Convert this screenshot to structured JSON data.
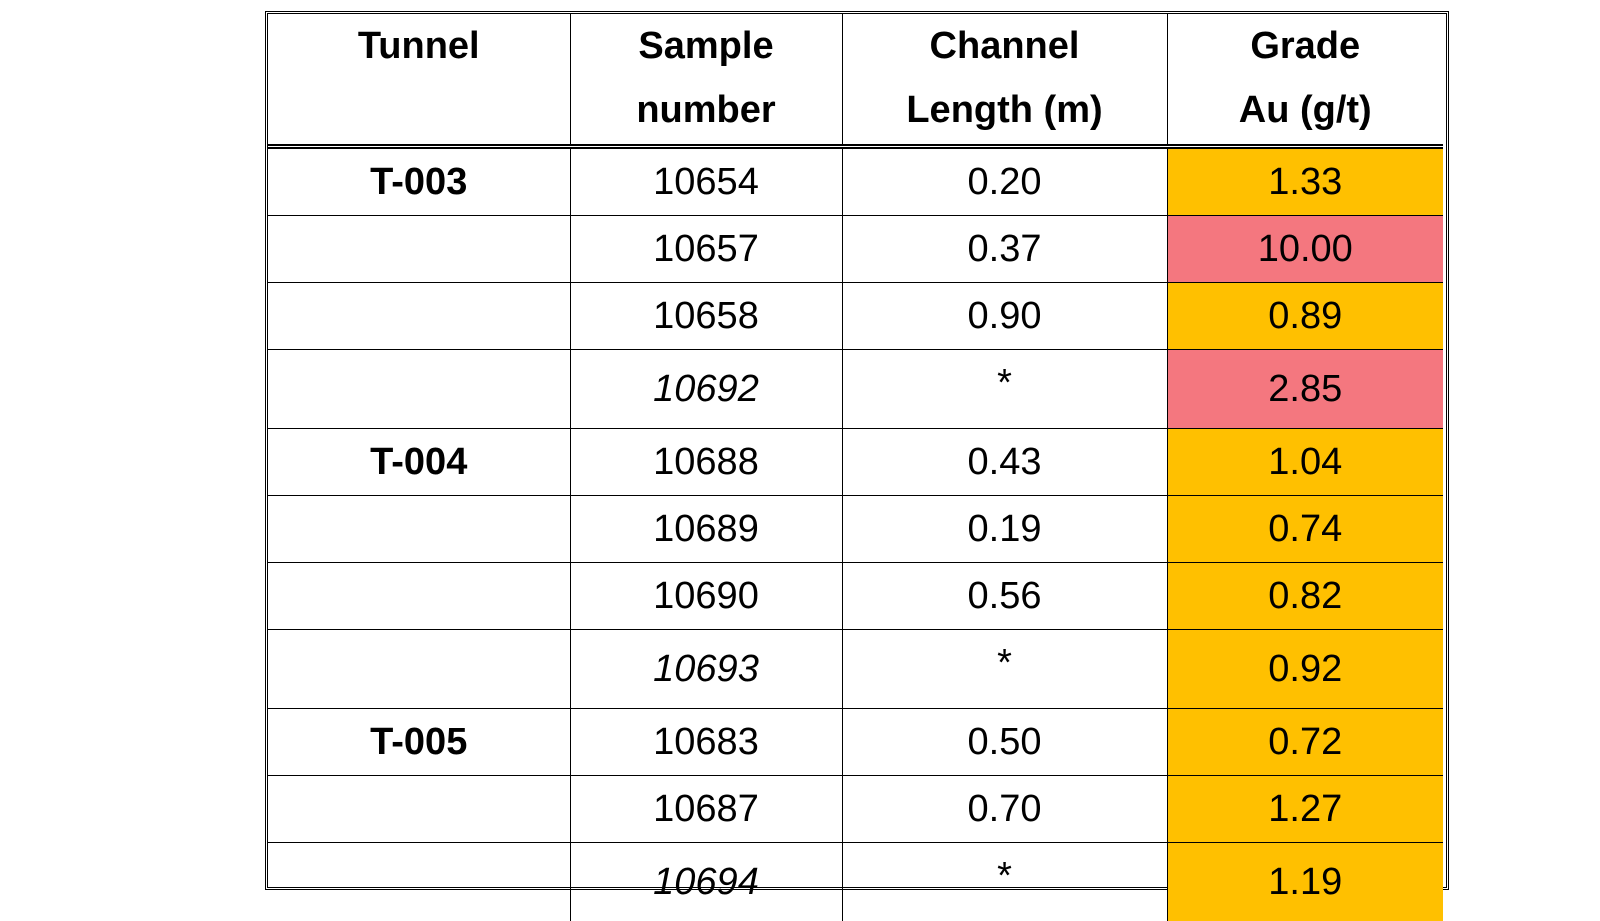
{
  "table": {
    "headers": {
      "tunnel": [
        "Tunnel"
      ],
      "sample": [
        "Sample",
        "number"
      ],
      "channel": [
        "Channel",
        "Length (m)"
      ],
      "grade": [
        "Grade",
        "Au (g/t)"
      ]
    },
    "rows": [
      {
        "tunnel": "T-003",
        "sample": "10654",
        "sample_italic": false,
        "channel": "0.20",
        "grade": "1.33",
        "grade_color": "#ffc000"
      },
      {
        "tunnel": "",
        "sample": "10657",
        "sample_italic": false,
        "channel": "0.37",
        "grade": "10.00",
        "grade_color": "#f4777f"
      },
      {
        "tunnel": "",
        "sample": "10658",
        "sample_italic": false,
        "channel": "0.90",
        "grade": "0.89",
        "grade_color": "#ffc000"
      },
      {
        "tunnel": "",
        "sample": "10692",
        "sample_italic": true,
        "channel": "*",
        "grade": "2.85",
        "grade_color": "#f4777f"
      },
      {
        "tunnel": "T-004",
        "sample": "10688",
        "sample_italic": false,
        "channel": "0.43",
        "grade": "1.04",
        "grade_color": "#ffc000"
      },
      {
        "tunnel": "",
        "sample": "10689",
        "sample_italic": false,
        "channel": "0.19",
        "grade": "0.74",
        "grade_color": "#ffc000"
      },
      {
        "tunnel": "",
        "sample": "10690",
        "sample_italic": false,
        "channel": "0.56",
        "grade": "0.82",
        "grade_color": "#ffc000"
      },
      {
        "tunnel": "",
        "sample": "10693",
        "sample_italic": true,
        "channel": "*",
        "grade": "0.92",
        "grade_color": "#ffc000"
      },
      {
        "tunnel": "T-005",
        "sample": "10683",
        "sample_italic": false,
        "channel": "0.50",
        "grade": "0.72",
        "grade_color": "#ffc000"
      },
      {
        "tunnel": "",
        "sample": "10687",
        "sample_italic": false,
        "channel": "0.70",
        "grade": "1.27",
        "grade_color": "#ffc000"
      },
      {
        "tunnel": "",
        "sample": "10694",
        "sample_italic": true,
        "channel": "*",
        "grade": "1.19",
        "grade_color": "#ffc000"
      }
    ]
  }
}
